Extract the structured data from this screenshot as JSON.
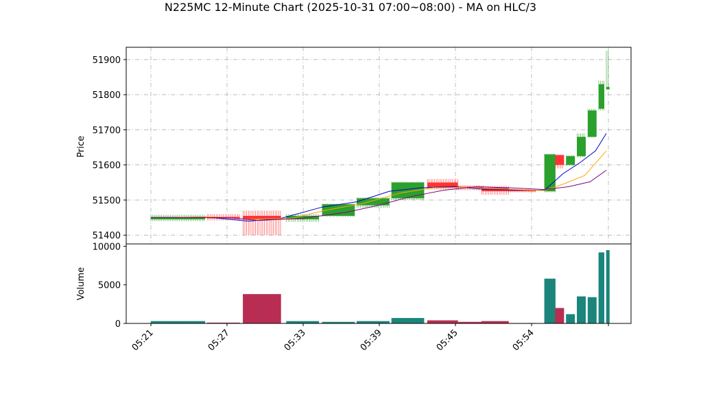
{
  "chart_data": {
    "type": "candlestick",
    "title": "N225MC 12-Minute Chart (2025-10-31 07:00~08:00) - MA on HLC/3",
    "price_panel": {
      "ylabel": "Price",
      "ylim": [
        51375,
        51935
      ],
      "yticks": [
        51400,
        51500,
        51600,
        51700,
        51800,
        51900
      ],
      "grid": true
    },
    "volume_panel": {
      "ylabel": "Volume",
      "ylim": [
        0,
        10300
      ],
      "yticks": [
        0,
        5000,
        10000
      ],
      "yticklabels": [
        "0",
        "5000",
        "10000"
      ]
    },
    "x_ticklabels": [
      "05:21",
      "05:27",
      "05:33",
      "05:39",
      "05:45",
      "05:54",
      ""
    ],
    "candles": [
      {
        "x": 0,
        "open": 51445,
        "high": 51458,
        "low": 51440,
        "close": 51452,
        "volume": 300
      },
      {
        "x": 1,
        "open": 51452,
        "high": 51460,
        "low": 51442,
        "close": 51448,
        "volume": 100
      },
      {
        "x": 2,
        "open": 51455,
        "high": 51470,
        "low": 51400,
        "close": 51445,
        "volume": 3800
      },
      {
        "x": 3,
        "open": 51445,
        "high": 51460,
        "low": 51438,
        "close": 51455,
        "volume": 300
      },
      {
        "x": 4,
        "open": 51455,
        "high": 51490,
        "low": 51452,
        "close": 51488,
        "volume": 200
      },
      {
        "x": 5,
        "open": 51485,
        "high": 51508,
        "low": 51478,
        "close": 51505,
        "volume": 300
      },
      {
        "x": 6,
        "open": 51505,
        "high": 51552,
        "low": 51500,
        "close": 51550,
        "volume": 700
      },
      {
        "x": 7,
        "open": 51550,
        "high": 51560,
        "low": 51530,
        "close": 51535,
        "volume": 400
      },
      {
        "x": 8,
        "open": 51538,
        "high": 51542,
        "low": 51528,
        "close": 51535,
        "volume": 200
      },
      {
        "x": 9,
        "open": 51535,
        "high": 51540,
        "low": 51515,
        "close": 51525,
        "volume": 300
      },
      {
        "x": 10,
        "open": 51528,
        "high": 51530,
        "low": 51522,
        "close": 51525,
        "volume": 50
      },
      {
        "x": 11,
        "open": 51525,
        "high": 51632,
        "low": 51522,
        "close": 51630,
        "volume": 5800
      },
      {
        "x": 12,
        "open": 51628,
        "high": 51630,
        "low": 51590,
        "close": 51600,
        "volume": 2000
      },
      {
        "x": 13,
        "open": 51600,
        "high": 51628,
        "low": 51598,
        "close": 51625,
        "volume": 1200
      },
      {
        "x": 14,
        "open": 51625,
        "high": 51690,
        "low": 51622,
        "close": 51680,
        "volume": 3500
      },
      {
        "x": 15,
        "open": 51680,
        "high": 51760,
        "low": 51678,
        "close": 51755,
        "volume": 3400
      },
      {
        "x": 16,
        "open": 51760,
        "high": 51840,
        "low": 51755,
        "close": 51830,
        "volume": 9200
      },
      {
        "x": 17,
        "open": 51815,
        "high": 51925,
        "low": 51815,
        "close": 51822,
        "volume": 9500
      }
    ],
    "candle_x_pos": [
      0,
      5.2,
      8.5,
      12.5,
      15.8,
      19,
      22.2,
      25.5,
      28.2,
      30.5,
      33,
      36.3,
      37.3,
      38.3,
      39.3,
      40.3,
      41.3,
      42
    ],
    "candle_widths": [
      5,
      3,
      3.5,
      3,
      3,
      3,
      3,
      2.8,
      2.5,
      2.5,
      2.5,
      1,
      0.8,
      0.8,
      0.8,
      0.8,
      0.5,
      0.3
    ],
    "ma_series": [
      {
        "color": "#0000cc",
        "points": [
          [
            0,
            51450
          ],
          [
            5,
            51452
          ],
          [
            9,
            51440
          ],
          [
            12,
            51448
          ],
          [
            15.8,
            51480
          ],
          [
            19,
            51495
          ],
          [
            22,
            51525
          ],
          [
            25,
            51535
          ],
          [
            28,
            51538
          ],
          [
            31,
            51530
          ],
          [
            36.3,
            51528
          ],
          [
            38,
            51575
          ],
          [
            39.5,
            51605
          ],
          [
            41,
            51640
          ],
          [
            42,
            51690
          ]
        ]
      },
      {
        "color": "#ffa500",
        "points": [
          [
            0,
            51450
          ],
          [
            6,
            51452
          ],
          [
            9,
            51445
          ],
          [
            13,
            51448
          ],
          [
            16,
            51470
          ],
          [
            19.5,
            51490
          ],
          [
            23,
            51520
          ],
          [
            26,
            51535
          ],
          [
            29,
            51536
          ],
          [
            32,
            51532
          ],
          [
            36.3,
            51527
          ],
          [
            38,
            51545
          ],
          [
            40,
            51570
          ],
          [
            42,
            51640
          ]
        ]
      },
      {
        "color": "#800080",
        "points": [
          [
            0,
            51450
          ],
          [
            7,
            51450
          ],
          [
            10,
            51442
          ],
          [
            14,
            51448
          ],
          [
            18,
            51465
          ],
          [
            21,
            51485
          ],
          [
            24,
            51510
          ],
          [
            27,
            51528
          ],
          [
            30,
            51538
          ],
          [
            33,
            51535
          ],
          [
            36.3,
            51530
          ],
          [
            38.5,
            51538
          ],
          [
            40.5,
            51552
          ],
          [
            42,
            51585
          ]
        ]
      }
    ],
    "colors": {
      "up": "#2ca02c",
      "down": "#ff3333",
      "volume_up": "#1f77b4",
      "volume_down": "#d62728",
      "grid": "#b0b0b0"
    }
  }
}
